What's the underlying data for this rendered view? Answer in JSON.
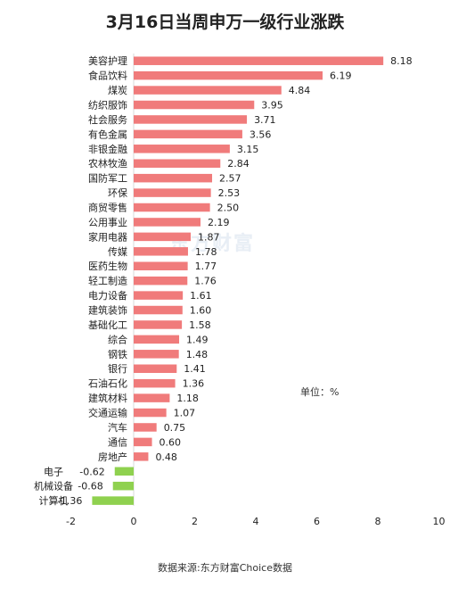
{
  "chart_data": {
    "type": "bar",
    "orientation": "horizontal",
    "title": "3月16日当周申万一级行业涨跌",
    "unit_label": "单位：%",
    "source": "数据来源:东方财富Choice数据",
    "watermark": "东方财富",
    "categories": [
      "美容护理",
      "食品饮料",
      "煤炭",
      "纺织服饰",
      "社会服务",
      "有色金属",
      "非银金融",
      "农林牧渔",
      "国防军工",
      "环保",
      "商贸零售",
      "公用事业",
      "家用电器",
      "传媒",
      "医药生物",
      "轻工制造",
      "电力设备",
      "建筑装饰",
      "基础化工",
      "综合",
      "钢铁",
      "银行",
      "石油石化",
      "建筑材料",
      "交通运输",
      "汽车",
      "通信",
      "房地产",
      "电子",
      "机械设备",
      "计算机"
    ],
    "values": [
      8.18,
      6.19,
      4.84,
      3.95,
      3.71,
      3.56,
      3.15,
      2.84,
      2.57,
      2.53,
      2.5,
      2.19,
      1.87,
      1.78,
      1.77,
      1.76,
      1.61,
      1.6,
      1.58,
      1.49,
      1.48,
      1.41,
      1.36,
      1.18,
      1.07,
      0.75,
      0.6,
      0.48,
      -0.62,
      -0.68,
      -1.36
    ],
    "value_labels": [
      "8.18",
      "6.19",
      "4.84",
      "3.95",
      "3.71",
      "3.56",
      "3.15",
      "2.84",
      "2.57",
      "2.53",
      "2.50",
      "2.19",
      "1.87",
      "1.78",
      "1.77",
      "1.76",
      "1.61",
      "1.60",
      "1.58",
      "1.49",
      "1.48",
      "1.41",
      "1.36",
      "1.18",
      "1.07",
      "0.75",
      "0.60",
      "0.48",
      "-0.62",
      "-0.68",
      "-1.36"
    ],
    "xlim": [
      -2,
      10
    ],
    "xticks": [
      -2,
      0,
      2,
      4,
      6,
      8,
      10
    ],
    "positive_color": "#f07b7b",
    "negative_color": "#8fd14f",
    "grid": false
  }
}
